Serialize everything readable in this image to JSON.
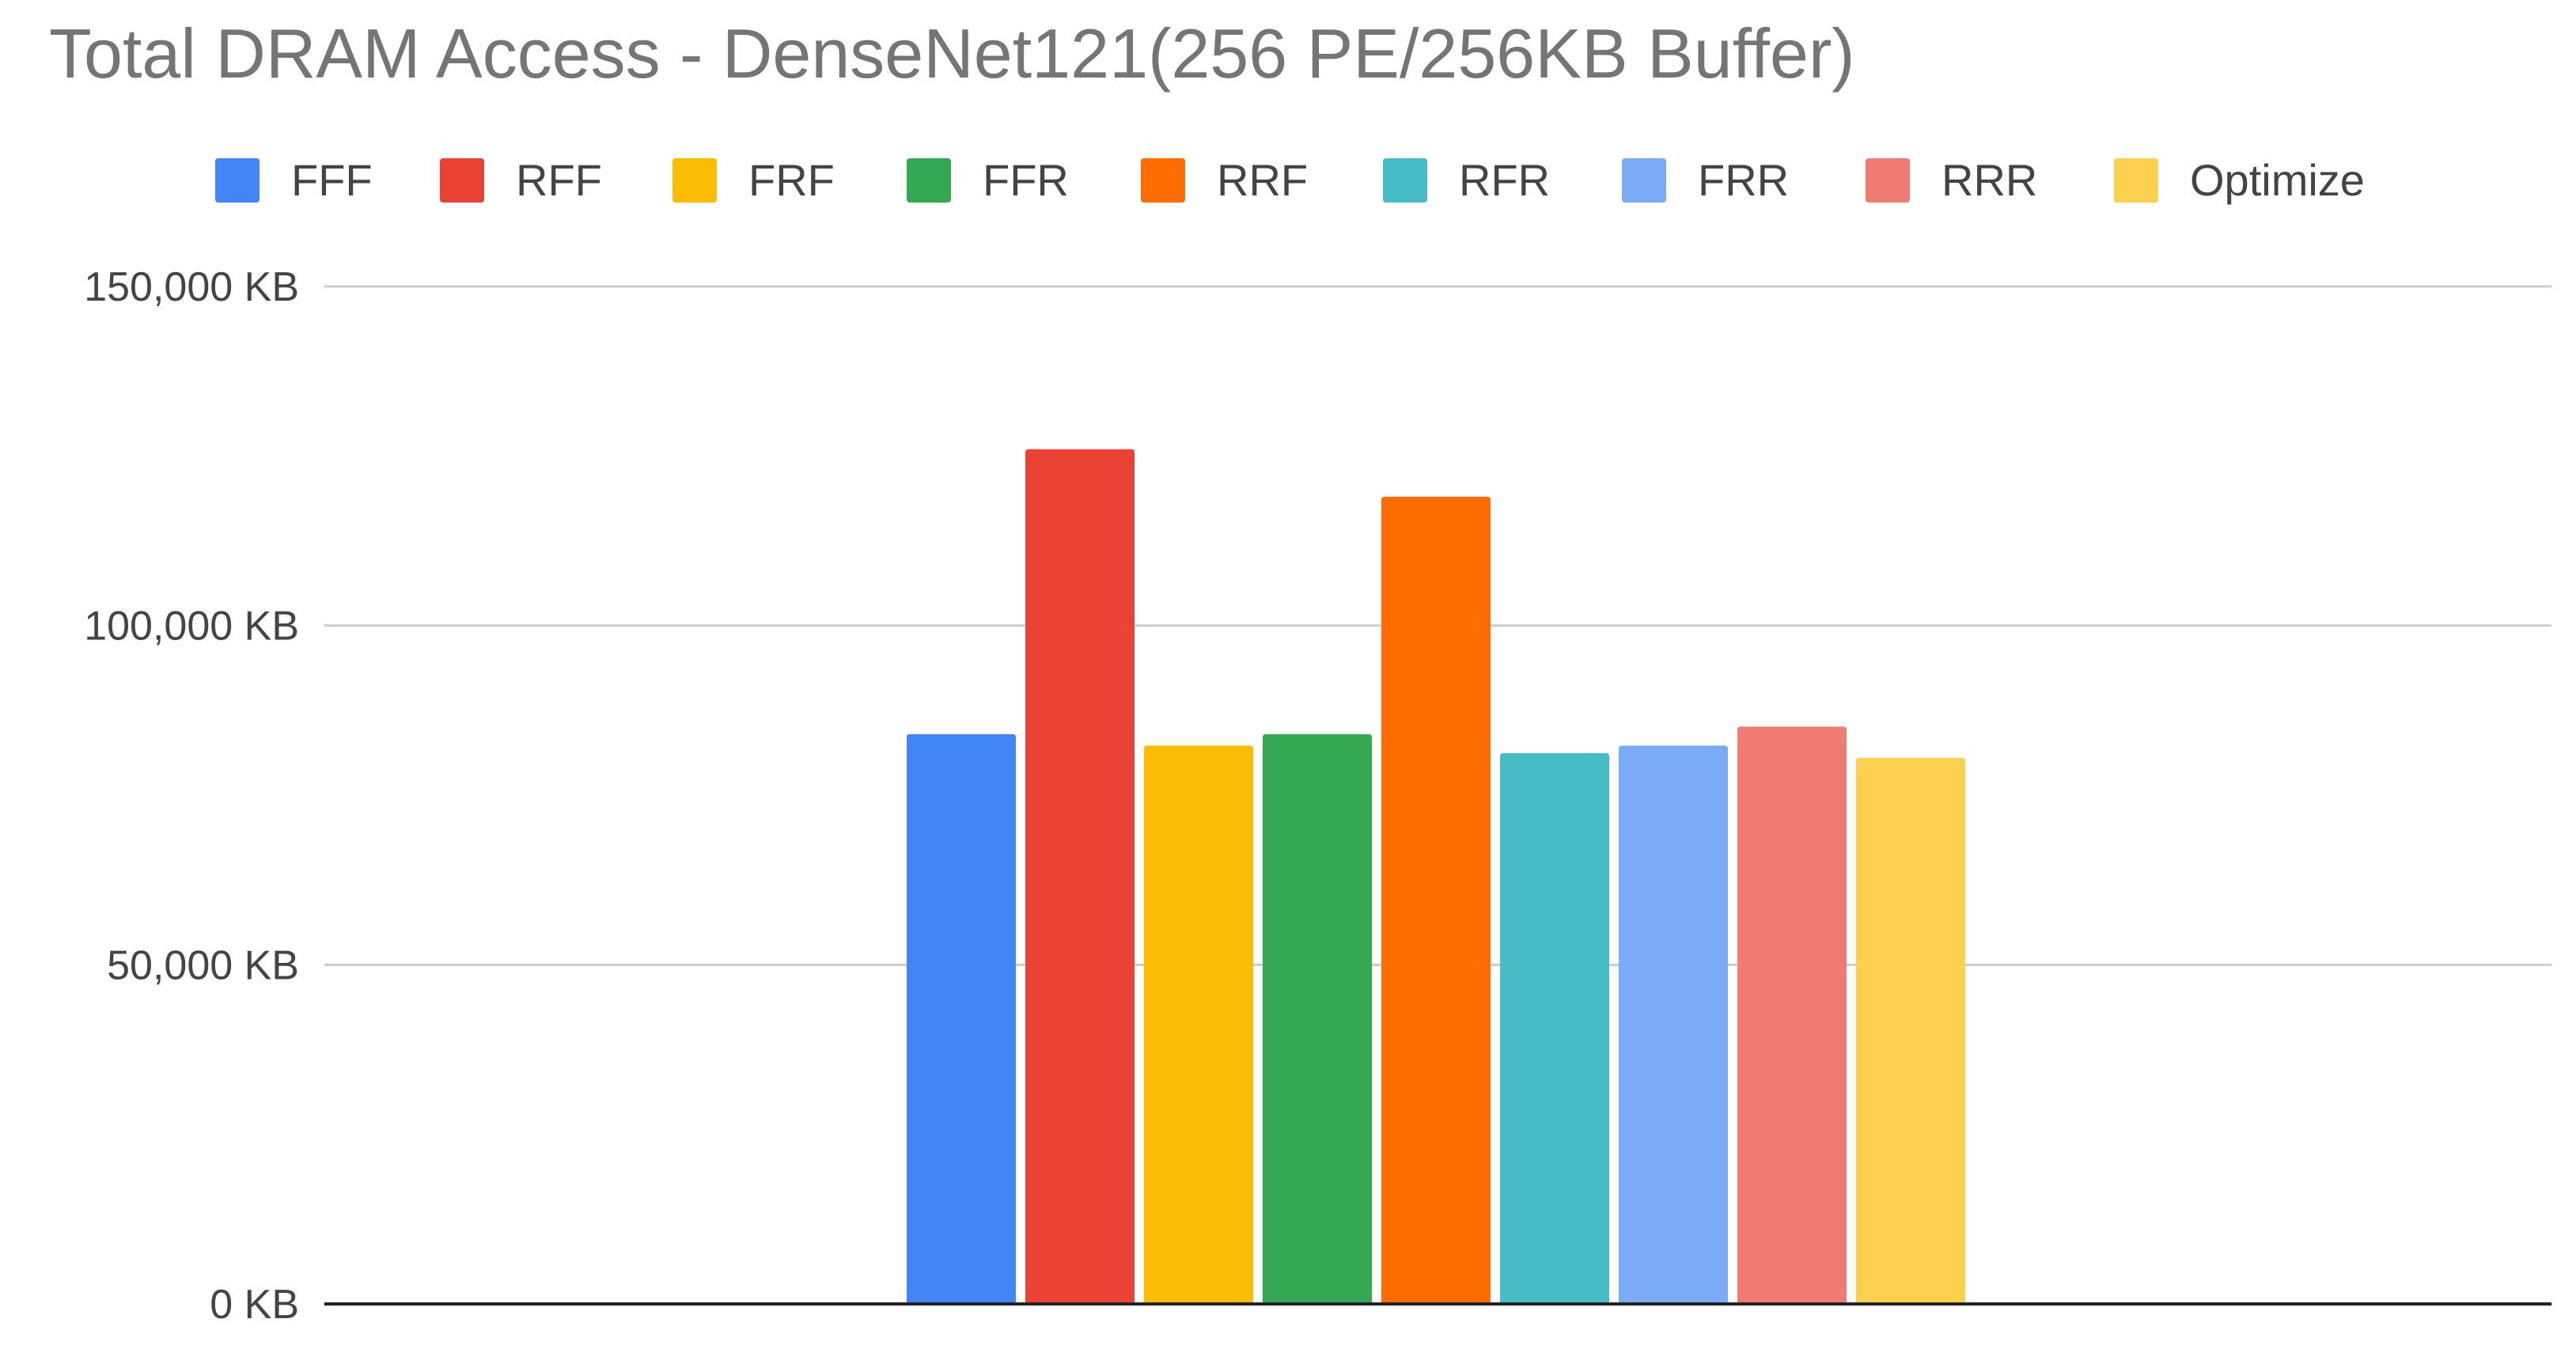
{
  "chart_data": {
    "type": "bar",
    "title": "Total DRAM Access - DenseNet121(256 PE/256KB Buffer)",
    "xlabel": "",
    "ylabel": "",
    "ylim": [
      0,
      150000
    ],
    "y_ticks": [
      0,
      50000,
      100000,
      150000
    ],
    "y_tick_labels": [
      "0 KB",
      "50,000 KB",
      "100,000 KB",
      "150,000 KB"
    ],
    "grid": true,
    "legend_position": "top",
    "categories": [
      ""
    ],
    "series": [
      {
        "name": "FFF",
        "values": [
          84000
        ],
        "color": "#4285F4"
      },
      {
        "name": "RFF",
        "values": [
          126000
        ],
        "color": "#EA4335"
      },
      {
        "name": "FRF",
        "values": [
          82300
        ],
        "color": "#FBBC04"
      },
      {
        "name": "FFR",
        "values": [
          84000
        ],
        "color": "#34A853"
      },
      {
        "name": "RRF",
        "values": [
          119000
        ],
        "color": "#FF6D01"
      },
      {
        "name": "RFR",
        "values": [
          81200
        ],
        "color": "#46BDC6"
      },
      {
        "name": "FRR",
        "values": [
          82300
        ],
        "color": "#7BAAF7"
      },
      {
        "name": "RRR",
        "values": [
          85100
        ],
        "color": "#F07B72"
      },
      {
        "name": "Optimize",
        "values": [
          80500
        ],
        "color": "#FCD04F"
      }
    ]
  },
  "colors": {
    "title_text": "#757575",
    "axis_text": "#444444",
    "legend_text": "#444444",
    "gridline": "#cccccc",
    "baseline": "#222222",
    "background": "#ffffff"
  }
}
